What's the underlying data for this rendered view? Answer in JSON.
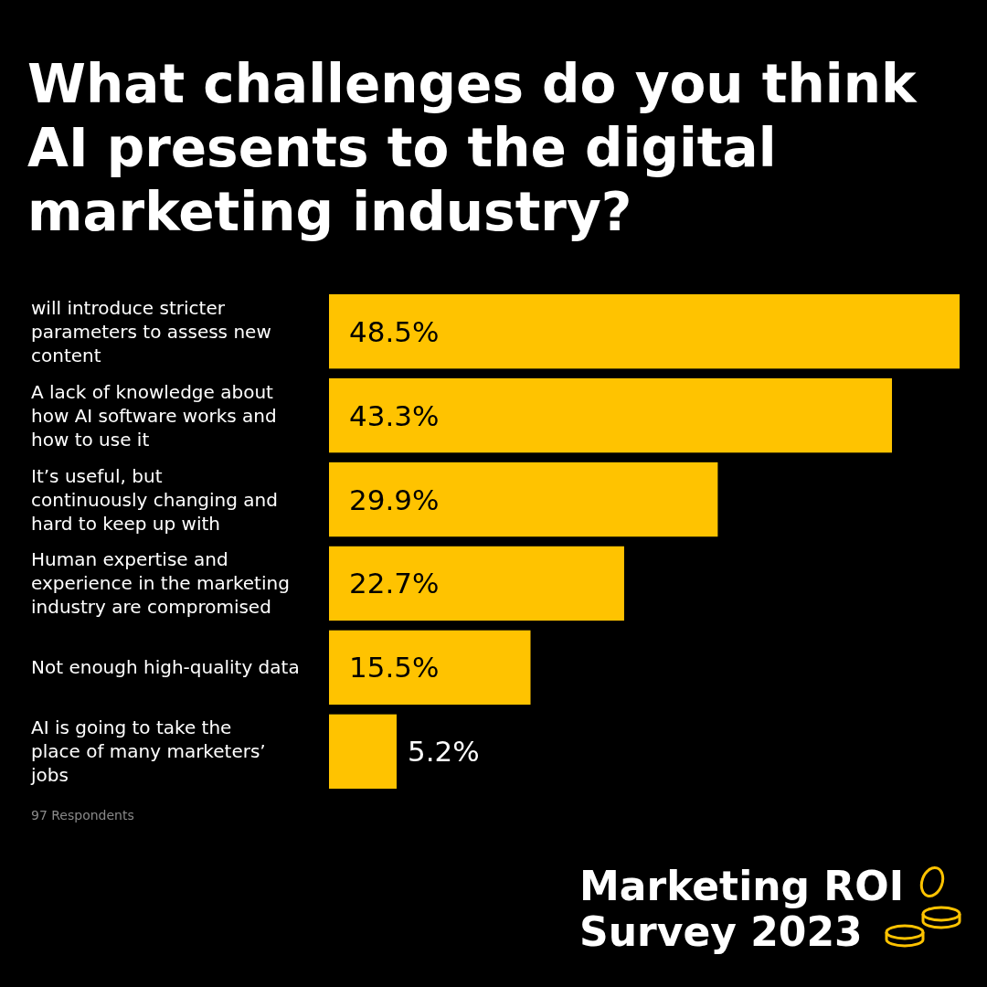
{
  "chart_data": {
    "type": "bar",
    "orientation": "horizontal",
    "title": "What challenges do you think AI presents to the digital marketing industry?",
    "categories": [
      "will introduce stricter parameters to assess new content",
      "A lack of knowledge about how AI software works and how to use it",
      "It’s useful, but continuously changing and hard to keep up with",
      "Human expertise and experience in the marketing industry are compromised",
      "Not enough high-quality data",
      "AI is going to take the place of many marketers’ jobs"
    ],
    "values": [
      48.5,
      43.3,
      29.9,
      22.7,
      15.5,
      5.2
    ],
    "value_labels": [
      "48.5%",
      "43.3%",
      "29.9%",
      "22.7%",
      "15.5%",
      "5.2%"
    ],
    "color": "#ffc300",
    "annotations": [
      "97 Respondents",
      "Marketing ROI Survey 2023"
    ]
  }
}
